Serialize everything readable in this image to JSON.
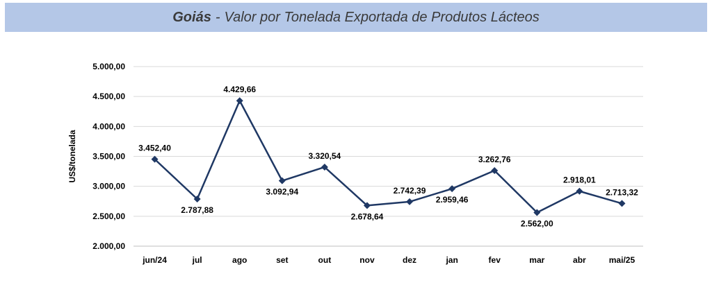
{
  "title": {
    "region": "Goiás",
    "separator": "-",
    "subtitle": "Valor por Tonelada Exportada de Produtos Lácteos"
  },
  "colors": {
    "line": "#1f3864",
    "header_bg": "#b4c7e7",
    "grid": "#d9d9d9"
  },
  "chart_data": {
    "type": "line",
    "title": "Goiás - Valor por Tonelada Exportada de Produtos Lácteos",
    "xlabel": "",
    "ylabel": "US$/tonelada",
    "categories": [
      "jun/24",
      "jul",
      "ago",
      "set",
      "out",
      "nov",
      "dez",
      "jan",
      "fev",
      "mar",
      "abr",
      "mai/25"
    ],
    "values": [
      3452.4,
      2787.88,
      4429.66,
      3092.94,
      3320.54,
      2678.64,
      2742.39,
      2959.46,
      3262.76,
      2562.0,
      2918.01,
      2713.32
    ],
    "value_labels": [
      "3.452,40",
      "2.787,88",
      "4.429,66",
      "3.092,94",
      "3.320,54",
      "2.678,64",
      "2.742,39",
      "2.959,46",
      "3.262,76",
      "2.562,00",
      "2.918,01",
      "2.713,32"
    ],
    "label_positions": [
      "above",
      "below",
      "above",
      "below",
      "above",
      "below",
      "above",
      "below",
      "above",
      "below",
      "above",
      "above"
    ],
    "ylim": [
      2000,
      5000
    ],
    "yticks": [
      2000,
      2500,
      3000,
      3500,
      4000,
      4500,
      5000
    ],
    "ytick_labels": [
      "2.000,00",
      "2.500,00",
      "3.000,00",
      "3.500,00",
      "4.000,00",
      "4.500,00",
      "5.000,00"
    ],
    "grid": true,
    "marker": "diamond"
  }
}
